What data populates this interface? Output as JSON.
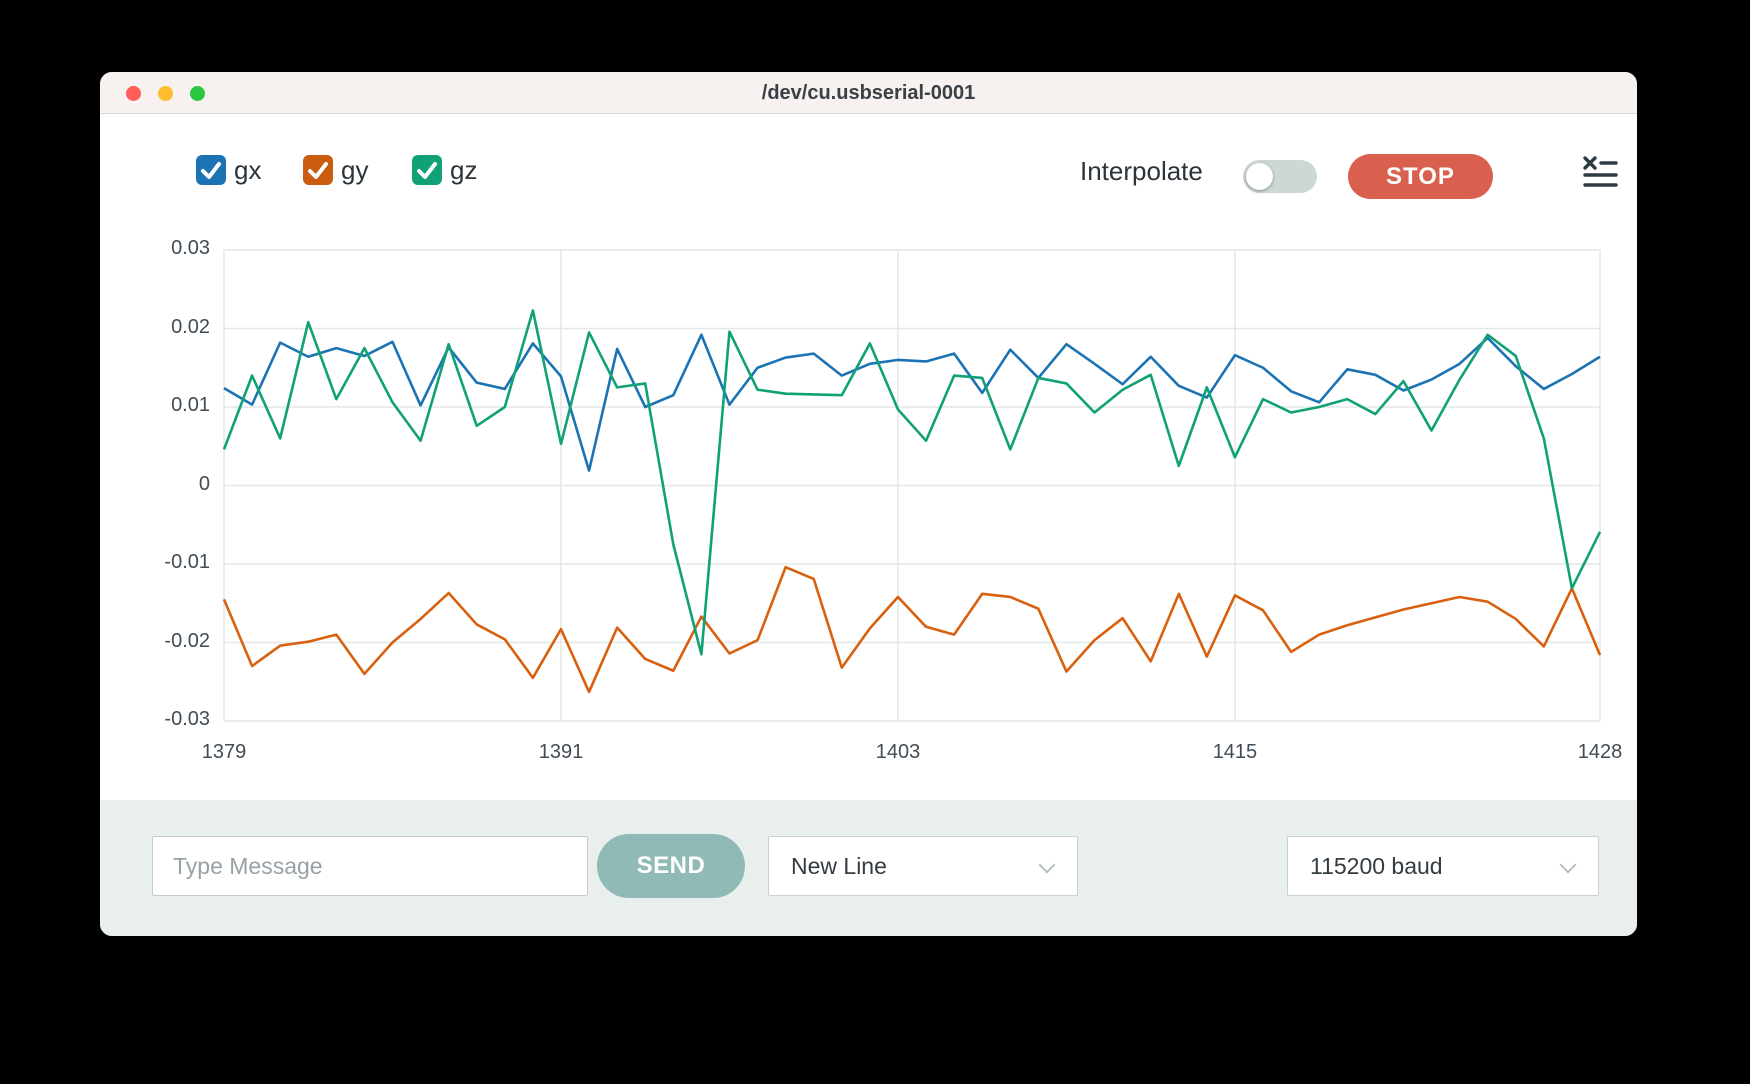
{
  "window": {
    "title": "/dev/cu.usbserial-0001"
  },
  "titlebar_buttons": {
    "close_color": "#ff5f57",
    "minimize_color": "#febc2e",
    "zoom_color": "#28c840"
  },
  "legend": [
    {
      "label": "gx",
      "checked": true,
      "color": "#1c73b4"
    },
    {
      "label": "gy",
      "checked": true,
      "color": "#c95c0e"
    },
    {
      "label": "gz",
      "checked": true,
      "color": "#10a176"
    }
  ],
  "controls": {
    "interpolate_label": "Interpolate",
    "interpolate_on": false,
    "toggle_off_color": "#cdd7d5",
    "stop_label": "STOP",
    "stop_color": "#d9604e",
    "clear_icon": "clear-log-icon"
  },
  "chart_data": {
    "type": "line",
    "xlim": [
      1379,
      1428
    ],
    "ylim": [
      -0.03,
      0.03
    ],
    "grid": true,
    "legend_position": "top-left-checkboxes",
    "xticks": [
      {
        "v": 1379,
        "label": "1379"
      },
      {
        "v": 1391,
        "label": "1391"
      },
      {
        "v": 1403,
        "label": "1403"
      },
      {
        "v": 1415,
        "label": "1415"
      },
      {
        "v": 1428,
        "label": "1428"
      }
    ],
    "yticks": [
      {
        "v": 0.03,
        "label": "0.03"
      },
      {
        "v": 0.02,
        "label": "0.02"
      },
      {
        "v": 0.01,
        "label": "0.01"
      },
      {
        "v": 0,
        "label": "0"
      },
      {
        "v": -0.01,
        "label": "-0.01"
      },
      {
        "v": -0.02,
        "label": "-0.02"
      },
      {
        "v": -0.03,
        "label": "-0.03"
      }
    ],
    "x": [
      1379,
      1380,
      1381,
      1382,
      1383,
      1384,
      1385,
      1386,
      1387,
      1388,
      1389,
      1390,
      1391,
      1392,
      1393,
      1394,
      1395,
      1396,
      1397,
      1398,
      1399,
      1400,
      1401,
      1402,
      1403,
      1404,
      1405,
      1406,
      1407,
      1408,
      1409,
      1410,
      1411,
      1412,
      1413,
      1414,
      1415,
      1416,
      1417,
      1418,
      1419,
      1420,
      1421,
      1422,
      1423,
      1424,
      1425,
      1426,
      1427,
      1428
    ],
    "series": [
      {
        "name": "gx",
        "color": "#1c73b4",
        "values": [
          0.0124,
          0.0103,
          0.0182,
          0.0164,
          0.0175,
          0.0165,
          0.0183,
          0.0102,
          0.0176,
          0.0131,
          0.0123,
          0.0181,
          0.0139,
          0.0019,
          0.0174,
          0.01,
          0.0115,
          0.0192,
          0.0103,
          0.015,
          0.0163,
          0.0168,
          0.014,
          0.0155,
          0.016,
          0.0158,
          0.0168,
          0.0118,
          0.0173,
          0.0137,
          0.018,
          0.0155,
          0.0129,
          0.0164,
          0.0127,
          0.0112,
          0.0166,
          0.015,
          0.012,
          0.0106,
          0.0148,
          0.0141,
          0.0121,
          0.0135,
          0.0155,
          0.0188,
          0.0152,
          0.0123,
          0.0142,
          0.0164
        ]
      },
      {
        "name": "gy",
        "color": "#d8600f",
        "values": [
          -0.0145,
          -0.023,
          -0.0204,
          -0.0199,
          -0.019,
          -0.024,
          -0.02,
          -0.017,
          -0.0137,
          -0.0177,
          -0.0196,
          -0.0245,
          -0.0183,
          -0.0263,
          -0.0181,
          -0.0221,
          -0.0236,
          -0.0167,
          -0.0214,
          -0.0197,
          -0.0104,
          -0.0119,
          -0.0232,
          -0.0182,
          -0.0142,
          -0.018,
          -0.019,
          -0.0138,
          -0.0142,
          -0.0157,
          -0.0237,
          -0.0197,
          -0.0169,
          -0.0224,
          -0.0138,
          -0.0218,
          -0.014,
          -0.0159,
          -0.0212,
          -0.019,
          -0.0178,
          -0.0168,
          -0.0158,
          -0.015,
          -0.0142,
          -0.0148,
          -0.017,
          -0.0205,
          -0.0131,
          -0.0216
        ]
      },
      {
        "name": "gz",
        "color": "#10a176",
        "values": [
          0.0046,
          0.014,
          0.006,
          0.0208,
          0.011,
          0.0175,
          0.0106,
          0.0057,
          0.018,
          0.0076,
          0.01,
          0.0223,
          0.0053,
          0.0195,
          0.0125,
          0.013,
          -0.0075,
          -0.0215,
          0.0196,
          0.0122,
          0.0117,
          0.0116,
          0.0115,
          0.0181,
          0.0097,
          0.0057,
          0.014,
          0.0137,
          0.0046,
          0.0137,
          0.013,
          0.0093,
          0.0122,
          0.0141,
          0.0025,
          0.0125,
          0.0036,
          0.011,
          0.0093,
          0.01,
          0.011,
          0.0091,
          0.0133,
          0.007,
          0.0135,
          0.0192,
          0.0165,
          0.006,
          -0.0131,
          -0.0059
        ]
      }
    ]
  },
  "bottom_bar": {
    "message_placeholder": "Type Message",
    "message_value": "",
    "send_label": "SEND",
    "send_color": "#90bab6",
    "line_ending_selected": "New Line",
    "baud_selected": "115200 baud"
  }
}
